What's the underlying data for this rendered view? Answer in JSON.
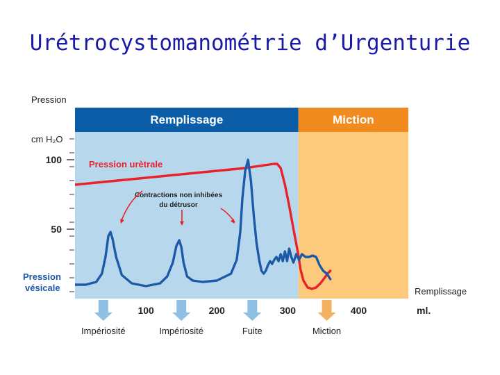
{
  "title": "Urétrocystomanométrie d’Urgenturie",
  "chart_data": {
    "type": "line",
    "yaxis_label_line1": "Pression",
    "yaxis_unit": "cm H₂O",
    "y_ticks": [
      100,
      50
    ],
    "x_ticks": [
      100,
      200,
      300,
      400
    ],
    "x_unit": "ml.",
    "xaxis_label": "Remplissage",
    "ylim": [
      0,
      120
    ],
    "xlim": [
      0,
      470
    ],
    "phases": [
      {
        "label": "Remplissage",
        "from": 0,
        "to": 315,
        "band_color": "#b7d8ec",
        "header_color": "#0b5da7"
      },
      {
        "label": "Miction",
        "from": 315,
        "to": 470,
        "band_color": "#fcc97d",
        "header_color": "#f18b1f"
      }
    ],
    "series": [
      {
        "name": "Pression urètrale",
        "color": "#e8222b",
        "x": [
          0,
          40,
          80,
          120,
          160,
          200,
          240,
          280,
          285,
          290,
          296,
          302,
          308,
          314,
          318,
          322,
          328,
          334,
          340,
          346,
          352,
          356,
          360
        ],
        "y": [
          82,
          84,
          86,
          88,
          90,
          92,
          94,
          97,
          97,
          94,
          82,
          67,
          50,
          34,
          21,
          13,
          8,
          7,
          8,
          11,
          15,
          18,
          20
        ]
      },
      {
        "name": "Pression vésicale",
        "color": "#1c5aa8",
        "x": [
          0,
          15,
          30,
          38,
          43,
          47,
          50,
          53,
          58,
          66,
          80,
          100,
          120,
          130,
          138,
          143,
          147,
          150,
          153,
          158,
          166,
          180,
          200,
          220,
          228,
          233,
          236,
          240,
          244,
          248,
          252,
          256,
          260,
          263,
          266,
          269,
          272,
          275,
          278,
          281,
          284,
          287,
          290,
          293,
          296,
          299,
          302,
          305,
          308,
          312,
          316,
          320,
          325,
          330,
          335,
          340,
          345,
          350,
          355,
          360
        ],
        "y": [
          10,
          10,
          12,
          18,
          30,
          45,
          48,
          43,
          30,
          17,
          11,
          9,
          11,
          16,
          26,
          38,
          42,
          37,
          26,
          16,
          13,
          12,
          13,
          18,
          28,
          48,
          72,
          92,
          100,
          85,
          60,
          40,
          27,
          20,
          18,
          20,
          24,
          27,
          25,
          28,
          30,
          27,
          32,
          27,
          34,
          27,
          36,
          30,
          26,
          32,
          28,
          32,
          30,
          30,
          31,
          30,
          24,
          20,
          18,
          14
        ]
      }
    ],
    "annotations": {
      "uretral_label": "Pression urètrale",
      "contractions_line1": "Contractions non inhibées",
      "contractions_line2": "du détrusor",
      "vesical_line1": "Pression",
      "vesical_line2": "vésicale"
    },
    "events": [
      {
        "label": "Impériosité",
        "x": 40,
        "color": "#8fc0e3"
      },
      {
        "label": "Impériosité",
        "x": 150,
        "color": "#8fc0e3"
      },
      {
        "label": "Fuite",
        "x": 250,
        "color": "#8fc0e3"
      },
      {
        "label": "Miction",
        "x": 355,
        "color": "#f5b25e"
      }
    ],
    "grid": false
  }
}
